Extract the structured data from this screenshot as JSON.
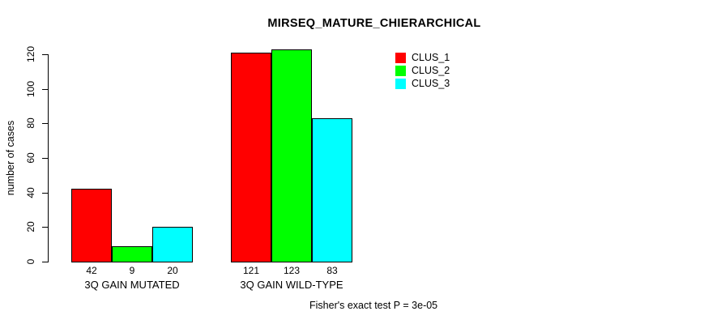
{
  "chart_data": {
    "type": "bar",
    "title": "MIRSEQ_MATURE_CHIERARCHICAL",
    "xlabel": "",
    "ylabel": "number of cases",
    "ylim": [
      0,
      120
    ],
    "yticks": [
      0,
      20,
      40,
      60,
      80,
      100,
      120
    ],
    "grid": false,
    "legend_position": "top-right",
    "categories": [
      "3Q GAIN MUTATED",
      "3Q GAIN WILD-TYPE"
    ],
    "series": [
      {
        "name": "CLUS_1",
        "color": "#ff0000",
        "values": [
          42,
          121
        ]
      },
      {
        "name": "CLUS_2",
        "color": "#00ff00",
        "values": [
          9,
          123
        ]
      },
      {
        "name": "CLUS_3",
        "color": "#00ffff",
        "values": [
          20,
          83
        ]
      }
    ],
    "bar_value_labels": [
      [
        42,
        9,
        20
      ],
      [
        121,
        123,
        83
      ]
    ],
    "annotation": "Fisher's exact test P = 3e-05"
  }
}
